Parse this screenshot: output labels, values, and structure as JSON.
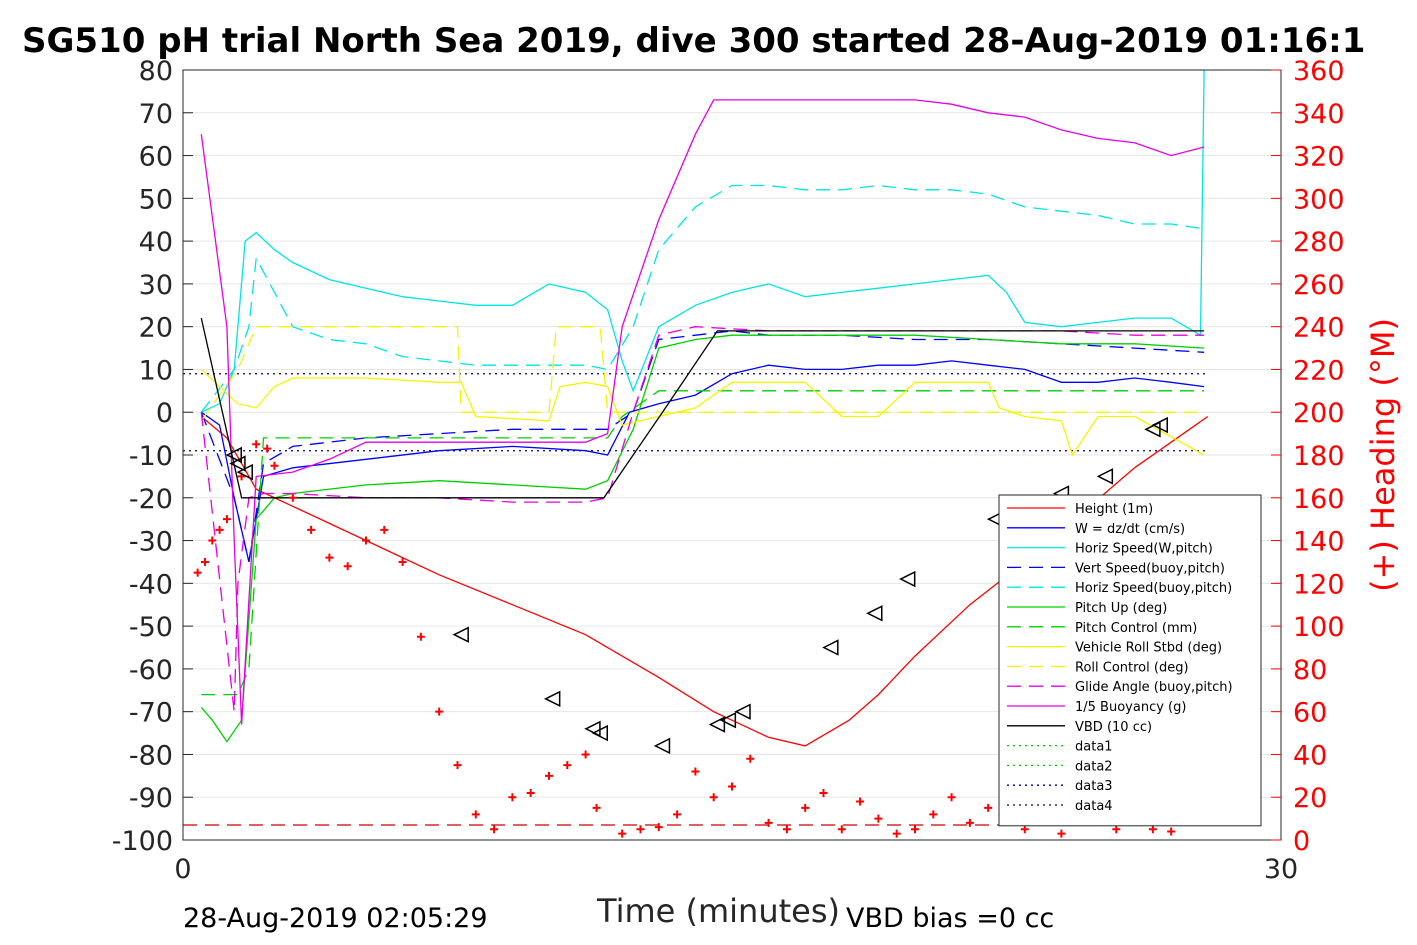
{
  "footer": {
    "timestamp": "28-Aug-2019 02:05:29",
    "vbd_bias": "VBD bias =0 cc"
  },
  "chart_data": {
    "type": "line",
    "title": "SG510 pH trial North Sea 2019, dive 300 started 28-Aug-2019 01:16:1",
    "xlabel": "Time (minutes)",
    "ylabel_left": "",
    "ylabel_right": "(+) Heading (°M)",
    "xlim": [
      0,
      30
    ],
    "ylim_left": [
      -100,
      80
    ],
    "ylim_right": [
      0,
      360
    ],
    "x_ticks": [
      0,
      30
    ],
    "y_ticks_left": [
      80,
      70,
      60,
      50,
      40,
      30,
      20,
      10,
      0,
      -10,
      -20,
      -30,
      -40,
      -50,
      -60,
      -70,
      -80,
      -90,
      -100
    ],
    "y_ticks_right": [
      360,
      340,
      320,
      300,
      280,
      260,
      240,
      220,
      200,
      180,
      160,
      140,
      120,
      100,
      80,
      60,
      40,
      20,
      0
    ],
    "grid": true,
    "legend_position": "lower-right",
    "colors": {
      "red": "#ff0000",
      "blue": "#0000ff",
      "cyan": "#00e5e5",
      "green": "#00d000",
      "yellow": "#f5f500",
      "magenta": "#e600e6",
      "black": "#000000"
    },
    "reference_lines": [
      {
        "y": 9,
        "style": "dotted",
        "color": "#000080"
      },
      {
        "y": -9,
        "style": "dotted",
        "color": "#000080"
      },
      {
        "y": -96.5,
        "style": "dashed",
        "color": "#cc0000"
      }
    ],
    "series": [
      {
        "name": "Height (1m)",
        "color": "#ff0000",
        "style": "solid",
        "x": [
          0.5,
          1.2,
          1.6,
          2.0,
          3.0,
          4.0,
          5.5,
          7.0,
          9.0,
          11.0,
          13.0,
          14.5,
          16.0,
          17.0,
          17.6,
          18.2,
          19.0,
          20.0,
          21.5,
          23.0,
          24.5,
          26.0,
          27.5,
          28.0
        ],
        "y": [
          -1,
          -6,
          -12,
          -18,
          -22,
          -26,
          -32,
          -38,
          -45,
          -52,
          -62,
          -70,
          -76,
          -78,
          -75,
          -72,
          -66,
          -57,
          -45,
          -35,
          -24,
          -13,
          -4,
          -1
        ]
      },
      {
        "name": "W = dz/dt (cm/s)",
        "color": "#0000ff",
        "style": "solid",
        "x": [
          0.5,
          1.0,
          1.4,
          1.8,
          2.2,
          3.0,
          5.0,
          7.0,
          9.0,
          11.0,
          11.6,
          12.2,
          13.0,
          14.0,
          15.0,
          16.0,
          17.0,
          18.0,
          19.0,
          20.0,
          21.0,
          22.0,
          23.0,
          24.0,
          25.0,
          26.0,
          27.0,
          27.9
        ],
        "y": [
          0,
          -3,
          -20,
          -35,
          -15,
          -13,
          -11,
          -9,
          -8,
          -9,
          -10,
          0,
          2,
          4,
          9,
          11,
          10,
          10,
          11,
          11,
          12,
          11,
          10,
          7,
          7,
          8,
          7,
          6
        ]
      },
      {
        "name": "Horiz Speed(W,pitch)",
        "color": "#00e5e5",
        "style": "solid",
        "x": [
          0.5,
          1.0,
          1.4,
          1.7,
          2.0,
          2.5,
          3.0,
          4.0,
          5.0,
          6.0,
          7.0,
          8.0,
          9.0,
          10.0,
          11.0,
          11.6,
          12.0,
          12.3,
          13.0,
          14.0,
          15.0,
          16.0,
          17.0,
          18.0,
          19.0,
          20.0,
          21.0,
          22.0,
          22.5,
          23.0,
          24.0,
          25.0,
          26.0,
          27.0,
          27.8,
          27.9
        ],
        "y": [
          0,
          2,
          10,
          40,
          42,
          38,
          35,
          31,
          29,
          27,
          26,
          25,
          25,
          30,
          28,
          24,
          12,
          5,
          20,
          25,
          28,
          30,
          27,
          28,
          29,
          30,
          31,
          32,
          28,
          21,
          20,
          21,
          22,
          22,
          18,
          80
        ]
      },
      {
        "name": "Vert Speed(buoy,pitch)",
        "color": "#0000ff",
        "style": "dashed",
        "x": [
          0.5,
          1.4,
          1.8,
          2.2,
          3.0,
          5.0,
          7.0,
          9.0,
          11.0,
          11.6,
          12.3,
          13.0,
          14.0,
          15.0,
          16.0,
          18.0,
          20.0,
          22.0,
          24.0,
          26.0,
          27.9
        ],
        "y": [
          0,
          -20,
          -35,
          -12,
          -8,
          -6,
          -5,
          -4,
          -4,
          -4,
          0,
          17,
          18,
          19,
          18,
          18,
          17,
          17,
          16,
          15,
          14
        ]
      },
      {
        "name": "Horiz Speed(buoy,pitch)",
        "color": "#00e5e5",
        "style": "dashed",
        "x": [
          0.5,
          1.4,
          1.8,
          2.0,
          3.0,
          4.0,
          5.0,
          6.0,
          7.0,
          8.0,
          9.0,
          10.0,
          11.0,
          11.6,
          12.3,
          13.0,
          14.0,
          15.0,
          16.0,
          17.0,
          18.0,
          19.0,
          20.0,
          21.0,
          22.0,
          23.0,
          24.0,
          25.0,
          26.0,
          27.0,
          27.8
        ],
        "y": [
          0,
          10,
          20,
          36,
          20,
          17,
          16,
          13,
          12,
          11,
          11,
          11,
          11,
          10,
          20,
          38,
          48,
          53,
          53,
          52,
          52,
          53,
          52,
          52,
          51,
          48,
          47,
          46,
          44,
          44,
          43
        ]
      },
      {
        "name": "Pitch Up (deg)",
        "color": "#00d000",
        "style": "solid",
        "x": [
          0.5,
          0.8,
          1.2,
          1.6,
          2.0,
          2.5,
          3.0,
          5.0,
          7.0,
          9.0,
          11.0,
          11.6,
          12.3,
          13.0,
          14.0,
          15.0,
          16.0,
          18.0,
          20.0,
          22.0,
          24.0,
          26.0,
          27.9
        ],
        "y": [
          -69,
          -72,
          -77,
          -72,
          -25,
          -20,
          -19,
          -17,
          -16,
          -17,
          -18,
          -16,
          -4,
          15,
          17,
          18,
          18,
          18,
          18,
          17,
          16,
          16,
          15
        ]
      },
      {
        "name": "Pitch Control (mm)",
        "color": "#00d000",
        "style": "dashed",
        "x": [
          0.5,
          1.2,
          1.5,
          1.8,
          2.2,
          11.6,
          12.0,
          13.0,
          27.9
        ],
        "y": [
          -66,
          -66,
          -66,
          -60,
          -6,
          -6,
          -1,
          5,
          5
        ]
      },
      {
        "name": "Vehicle Roll Stbd (deg)",
        "color": "#f5f500",
        "style": "solid",
        "x": [
          0.5,
          1.5,
          2.0,
          2.5,
          3.0,
          5.0,
          7.0,
          7.6,
          8.0,
          10.0,
          10.3,
          11.0,
          11.6,
          12.0,
          14.0,
          15.0,
          17.0,
          18.0,
          19.0,
          20.0,
          22.0,
          22.3,
          23.0,
          24.0,
          24.3,
          25.0,
          26.0,
          27.9
        ],
        "y": [
          10,
          2,
          1,
          6,
          8,
          8,
          7,
          7,
          -1,
          -2,
          6,
          7,
          6,
          -3,
          1,
          7,
          7,
          -1,
          -1,
          7,
          7,
          1,
          -1,
          -2,
          -10,
          -1,
          -1,
          -10
        ]
      },
      {
        "name": "Roll Control (deg)",
        "color": "#f5f500",
        "style": "dashed",
        "x": [
          0.5,
          1.5,
          2.0,
          7.5,
          7.6,
          10.0,
          10.2,
          11.4,
          11.6,
          14.0,
          27.9
        ],
        "y": [
          -2,
          10,
          20,
          20,
          0,
          0,
          20,
          20,
          0,
          0,
          0
        ]
      },
      {
        "name": "Glide Angle (buoy,pitch)",
        "color": "#e600e6",
        "style": "dashed",
        "x": [
          0.5,
          1.4,
          1.5,
          1.8,
          2.2,
          3.0,
          5.0,
          7.0,
          9.0,
          11.0,
          11.6,
          12.3,
          13.0,
          14.0,
          16.0,
          18.0,
          20.0,
          22.0,
          24.0,
          26.0,
          27.9
        ],
        "y": [
          0,
          -70,
          -40,
          -20,
          -19,
          -19,
          -20,
          -20,
          -21,
          -21,
          -20,
          0,
          18,
          20,
          19,
          19,
          19,
          19,
          19,
          18,
          18
        ]
      },
      {
        "name": "1/5 Buoyancy (g)",
        "color": "#e600e6",
        "style": "solid",
        "x": [
          0.5,
          1.2,
          1.4,
          1.6,
          2.0,
          3.0,
          4.0,
          5.0,
          7.0,
          9.0,
          11.0,
          11.6,
          12.0,
          13.0,
          14.0,
          14.5,
          15.0,
          17.0,
          19.0,
          20.0,
          21.0,
          22.0,
          23.0,
          24.0,
          25.0,
          26.0,
          27.0,
          27.9
        ],
        "y": [
          65,
          20,
          -30,
          -73,
          -15,
          -14,
          -11,
          -7,
          -7,
          -7,
          -7,
          -5,
          20,
          45,
          65,
          73,
          73,
          73,
          73,
          73,
          72,
          70,
          69,
          66,
          64,
          63,
          60,
          62
        ]
      },
      {
        "name": "VBD (10 cc)",
        "color": "#000000",
        "style": "solid",
        "x": [
          0.5,
          1.6,
          11.5,
          13.1,
          14.6,
          27.9
        ],
        "y": [
          22,
          -20,
          -20,
          0,
          19,
          19
        ]
      },
      {
        "name": "data1",
        "color": "#00d000",
        "style": "dotted",
        "x": [],
        "y": []
      },
      {
        "name": "data2",
        "color": "#00d000",
        "style": "dotted",
        "x": [],
        "y": []
      },
      {
        "name": "data3",
        "color": "#000080",
        "style": "dotted",
        "x": [],
        "y": []
      },
      {
        "name": "data4",
        "color": "#000080",
        "style": "dotted",
        "x": [],
        "y": []
      }
    ],
    "heading": {
      "name": "(+) Heading",
      "axis": "right",
      "marker": "plus",
      "color": "#ff0000",
      "x": [
        0.4,
        0.6,
        0.8,
        1.0,
        1.2,
        1.6,
        2.0,
        2.3,
        2.5,
        3.0,
        3.5,
        4.0,
        4.5,
        5.0,
        5.5,
        6.0,
        6.5,
        7.0,
        7.5,
        8.0,
        8.5,
        9.0,
        9.5,
        10.0,
        10.5,
        11.0,
        11.3,
        12.0,
        12.5,
        13.0,
        13.5,
        14.0,
        14.5,
        15.0,
        15.5,
        16.0,
        16.5,
        17.0,
        17.5,
        18.0,
        18.5,
        19.0,
        19.5,
        20.0,
        20.5,
        21.0,
        21.5,
        22.0,
        22.5,
        23.0,
        23.5,
        24.0,
        24.5,
        25.0,
        25.5,
        26.0,
        26.5,
        27.0
      ],
      "y": [
        125,
        130,
        140,
        145,
        150,
        170,
        185,
        183,
        175,
        160,
        145,
        132,
        128,
        140,
        145,
        130,
        95,
        60,
        35,
        12,
        5,
        20,
        22,
        30,
        35,
        40,
        15,
        3,
        5,
        6,
        12,
        32,
        20,
        25,
        38,
        8,
        5,
        15,
        22,
        5,
        18,
        10,
        3,
        5,
        12,
        20,
        8,
        15,
        22,
        5,
        12,
        3,
        30,
        18,
        5,
        10,
        5,
        4
      ]
    },
    "triangle_markers": {
      "x": [
        1.4,
        1.5,
        1.7,
        7.6,
        10.1,
        11.2,
        11.4,
        13.1,
        14.6,
        14.9,
        15.3,
        17.7,
        18.9,
        19.8,
        22.2,
        24.0,
        25.2,
        26.5,
        26.7
      ],
      "y": [
        -10,
        -12,
        -14,
        -52,
        -67,
        -74,
        -75,
        -78,
        -73,
        -72,
        -70,
        -55,
        -47,
        -39,
        -25,
        -19,
        -15,
        -4,
        -3
      ]
    }
  }
}
